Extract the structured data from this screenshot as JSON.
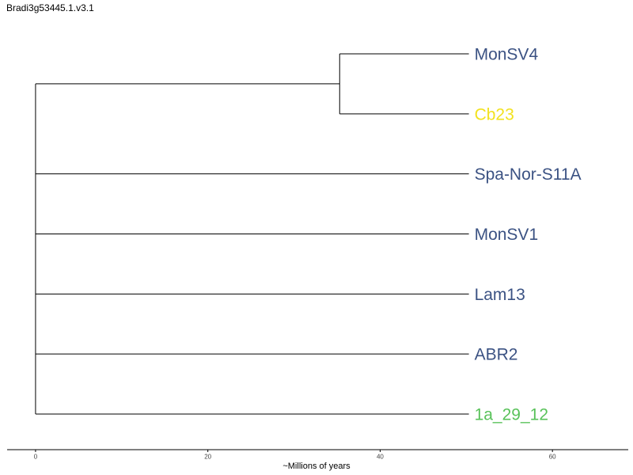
{
  "title": "Bradi3g53445.1.v3.1",
  "xlabel": "~Millions of years",
  "colors": {
    "line": "#000000",
    "tick_label": "#444444",
    "default_label": "#3b5283"
  },
  "chart_data": {
    "type": "dendrogram",
    "xlim": [
      -3.3,
      68.8
    ],
    "ticks": [
      {
        "value": 0,
        "label": "0"
      },
      {
        "value": 20,
        "label": "20"
      },
      {
        "value": 40,
        "label": "40"
      },
      {
        "value": 60,
        "label": "60"
      }
    ],
    "root_x": 0,
    "leaf_x": 50.3,
    "clade_node_x": 35.3,
    "leaves": [
      {
        "label": "MonSV4",
        "color": "#3b5283",
        "in_clade": true
      },
      {
        "label": "Cb23",
        "color": "#f2e21f",
        "in_clade": true
      },
      {
        "label": "Spa-Nor-S11A",
        "color": "#3b5283",
        "in_clade": false
      },
      {
        "label": "MonSV1",
        "color": "#3b5283",
        "in_clade": false
      },
      {
        "label": "Lam13",
        "color": "#3b5283",
        "in_clade": false
      },
      {
        "label": "ABR2",
        "color": "#3b5283",
        "in_clade": false
      },
      {
        "label": "1a_29_12",
        "color": "#59c25a",
        "in_clade": false
      }
    ]
  }
}
